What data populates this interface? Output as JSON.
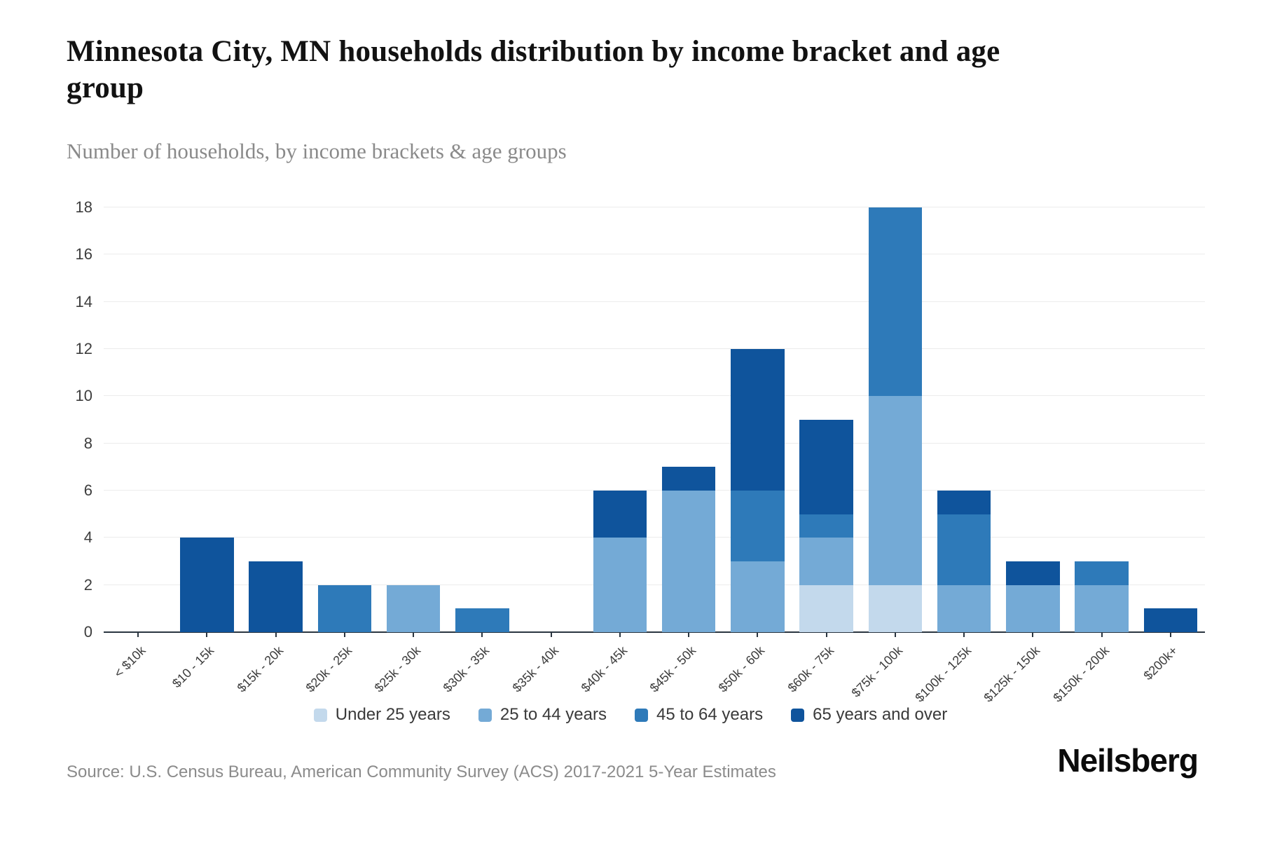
{
  "page": {
    "title": "Minnesota City, MN households distribution by income bracket and age group",
    "subtitle": "Number of households, by income brackets & age groups",
    "source": "Source: U.S. Census Bureau, American Community Survey (ACS) 2017-2021 5-Year Estimates",
    "brand": "Neilsberg"
  },
  "chart_data": {
    "type": "bar",
    "stacked": true,
    "title": "Minnesota City, MN households distribution by income bracket and age group",
    "subtitle": "Number of households, by income brackets & age groups",
    "xlabel": "",
    "ylabel": "Number of households",
    "ylim": [
      0,
      18
    ],
    "ytick_step": 2,
    "grid": "horizontal",
    "legend_position": "bottom",
    "categories": [
      "< $10k",
      "$10 - 15k",
      "$15k - 20k",
      "$20k - 25k",
      "$25k - 30k",
      "$30k - 35k",
      "$35k - 40k",
      "$40k - 45k",
      "$45k - 50k",
      "$50k - 60k",
      "$60k - 75k",
      "$75k - 100k",
      "$100k - 125k",
      "$125k - 150k",
      "$150k - 200k",
      "$200k+"
    ],
    "series": [
      {
        "name": "Under 25 years",
        "color": "#c3d9ec",
        "values": [
          0,
          0,
          0,
          0,
          0,
          0,
          0,
          0,
          0,
          0,
          2,
          2,
          0,
          0,
          0,
          0
        ]
      },
      {
        "name": "25 to 44 years",
        "color": "#74aad6",
        "values": [
          0,
          0,
          0,
          0,
          2,
          0,
          0,
          4,
          6,
          3,
          2,
          8,
          2,
          2,
          2,
          0
        ]
      },
      {
        "name": "45 to 64 years",
        "color": "#2e7ab9",
        "values": [
          0,
          0,
          0,
          2,
          0,
          1,
          0,
          0,
          0,
          3,
          1,
          8,
          3,
          0,
          1,
          0
        ]
      },
      {
        "name": "65 years and over",
        "color": "#0f549c",
        "values": [
          0,
          4,
          3,
          0,
          0,
          0,
          0,
          2,
          1,
          6,
          4,
          0,
          1,
          1,
          0,
          1
        ]
      }
    ],
    "totals": [
      0,
      4,
      3,
      2,
      2,
      1,
      0,
      6,
      7,
      12,
      9,
      18,
      6,
      3,
      3,
      1
    ],
    "bar_width_fraction": 0.78
  }
}
